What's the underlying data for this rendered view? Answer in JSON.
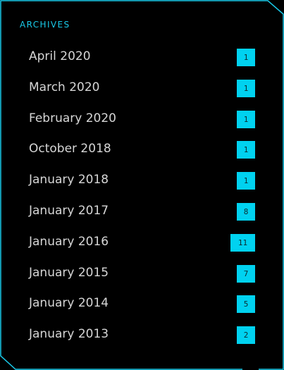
{
  "archives": {
    "title": "ARCHIVES",
    "items": [
      {
        "label": "April 2020",
        "count": "1"
      },
      {
        "label": "March 2020",
        "count": "1"
      },
      {
        "label": "February 2020",
        "count": "1"
      },
      {
        "label": "October 2018",
        "count": "1"
      },
      {
        "label": "January 2018",
        "count": "1"
      },
      {
        "label": "January 2017",
        "count": "8"
      },
      {
        "label": "January 2016",
        "count": "11"
      },
      {
        "label": "January 2015",
        "count": "7"
      },
      {
        "label": "January 2014",
        "count": "5"
      },
      {
        "label": "January 2013",
        "count": "2"
      }
    ]
  },
  "colors": {
    "background": "#000000",
    "accent": "#00d2f0",
    "frame": "#19c9e8",
    "text": "#d6d6d6"
  }
}
